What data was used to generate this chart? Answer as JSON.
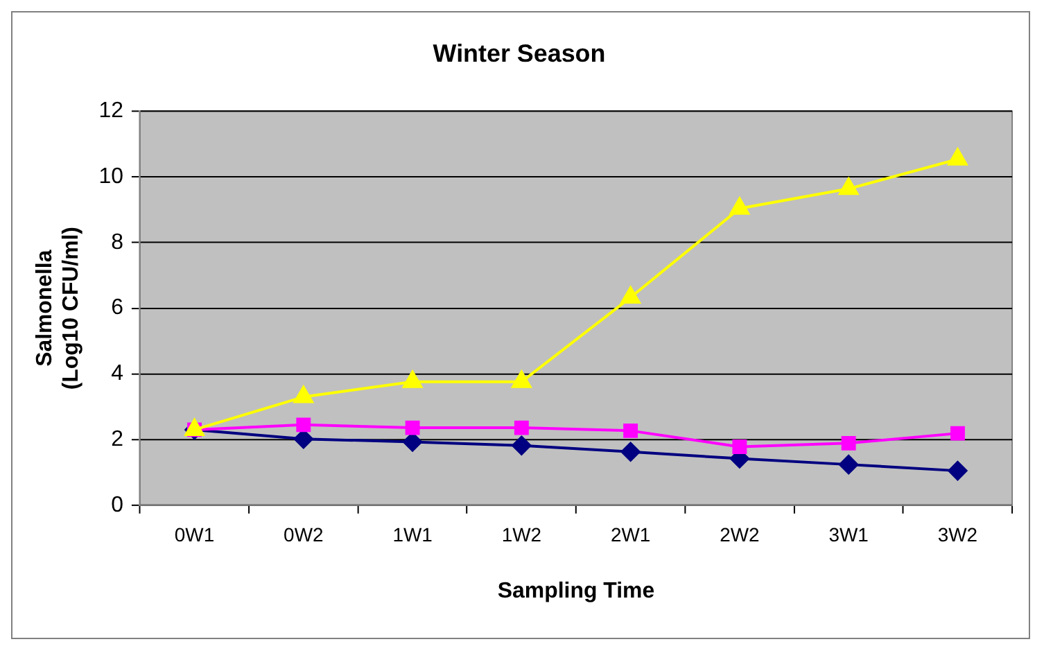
{
  "chart_data": {
    "type": "line",
    "title": "Winter Season",
    "xlabel": "Sampling Time",
    "ylabel": "Salmonella\n(Log10 CFU/ml)",
    "categories": [
      "0W1",
      "0W2",
      "1W1",
      "1W2",
      "2W1",
      "2W2",
      "3W1",
      "3W2"
    ],
    "series": [
      {
        "color": "#000080",
        "marker": "diamond",
        "values": [
          2.3,
          2.02,
          1.93,
          1.82,
          1.63,
          1.42,
          1.24,
          1.05
        ]
      },
      {
        "color": "#ff00ff",
        "marker": "square",
        "values": [
          2.3,
          2.45,
          2.36,
          2.36,
          2.27,
          1.78,
          1.89,
          2.19
        ]
      },
      {
        "color": "#ffff00",
        "marker": "triangle",
        "values": [
          2.3,
          3.3,
          3.76,
          3.76,
          6.33,
          9.04,
          9.64,
          10.54
        ]
      }
    ],
    "ylim": [
      0,
      12
    ],
    "yticks": [
      0,
      2,
      4,
      6,
      8,
      10,
      12
    ],
    "grid": "y",
    "legend": false
  }
}
